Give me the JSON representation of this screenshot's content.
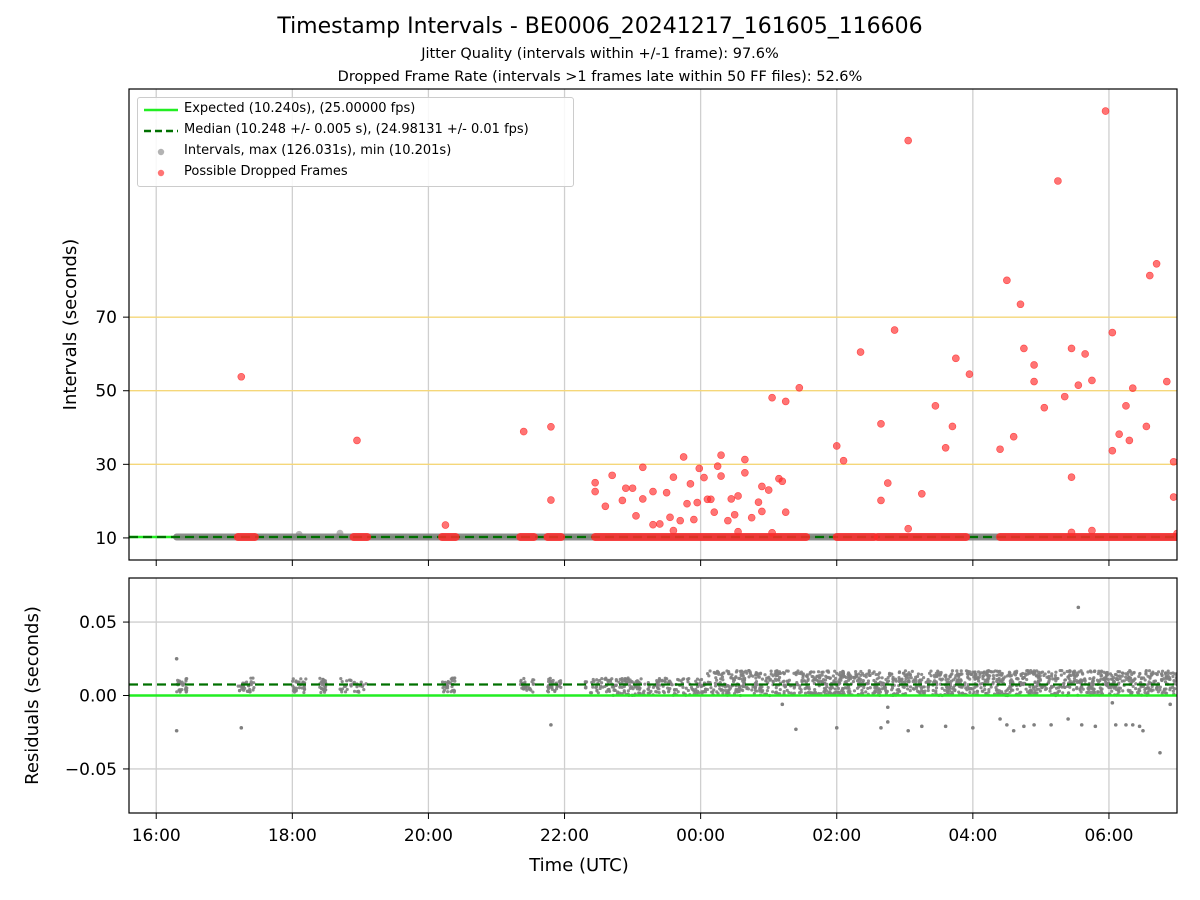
{
  "figure": {
    "title": "Timestamp Intervals - BE0006_20241217_161605_116606",
    "subtitle_1": "Jitter Quality (intervals within +/-1 frame): 97.6%",
    "subtitle_2": "Dropped Frame Rate (intervals >1 frames late within 50 FF files): 52.6%"
  },
  "colors": {
    "expected": "#22ee22",
    "median": "#007000",
    "intervals": "#808080",
    "dropped": "#ff2a2a",
    "threshold": "#f5d77a",
    "grid": "#cfcfcf"
  },
  "chart_data": [
    {
      "type": "scatter",
      "panel": "top",
      "ylabel": "Intervals (seconds)",
      "xlim_hours": [
        15.6,
        31.0
      ],
      "ylim": [
        4,
        132
      ],
      "yticks": [
        10,
        30,
        50,
        70
      ],
      "threshold_lines": [
        30,
        50,
        70
      ],
      "grid": "vertical",
      "legend_placement": "top-left",
      "legend": [
        {
          "key": "expected",
          "label": "Expected (10.240s), (25.00000 fps)",
          "style": "solid-line"
        },
        {
          "key": "median",
          "label": "Median (10.248 +/- 0.005 s), (24.98131 +/- 0.01 fps)",
          "style": "dashed-line"
        },
        {
          "key": "intervals",
          "label": "Intervals, max (126.031s), min (10.201s)",
          "style": "marker"
        },
        {
          "key": "dropped",
          "label": "Possible Dropped Frames",
          "style": "marker"
        }
      ],
      "expected_value": 10.24,
      "median_value": 10.248,
      "intervals_baseline": {
        "x_range_hours": [
          16.3,
          31.0
        ],
        "y": 10.25
      },
      "intervals_points": [
        [
          18.1,
          11.0
        ],
        [
          18.7,
          11.3
        ]
      ],
      "dropped_baseline_segments": [
        [
          17.2,
          17.45
        ],
        [
          18.9,
          19.1
        ],
        [
          20.2,
          20.4
        ],
        [
          21.35,
          21.55
        ],
        [
          21.75,
          21.95
        ],
        [
          22.45,
          25.55
        ],
        [
          26.0,
          26.55
        ],
        [
          26.6,
          27.9
        ],
        [
          28.4,
          31.0
        ]
      ],
      "dropped_points": [
        [
          17.25,
          53.8
        ],
        [
          18.95,
          36.5
        ],
        [
          20.25,
          13.5
        ],
        [
          21.4,
          38.9
        ],
        [
          21.8,
          40.2
        ],
        [
          21.8,
          20.3
        ],
        [
          22.45,
          25.0
        ],
        [
          22.45,
          22.6
        ],
        [
          22.6,
          18.6
        ],
        [
          22.7,
          27.0
        ],
        [
          22.85,
          20.2
        ],
        [
          22.9,
          23.5
        ],
        [
          23.0,
          23.5
        ],
        [
          23.05,
          16.0
        ],
        [
          23.15,
          29.2
        ],
        [
          23.15,
          20.6
        ],
        [
          23.3,
          22.6
        ],
        [
          23.3,
          13.6
        ],
        [
          23.4,
          13.8
        ],
        [
          23.5,
          22.3
        ],
        [
          23.55,
          15.6
        ],
        [
          23.6,
          26.5
        ],
        [
          23.6,
          12.0
        ],
        [
          23.7,
          14.7
        ],
        [
          23.75,
          32.0
        ],
        [
          23.8,
          19.3
        ],
        [
          23.85,
          24.7
        ],
        [
          23.9,
          15.0
        ],
        [
          23.95,
          19.6
        ],
        [
          23.98,
          28.9
        ],
        [
          24.05,
          26.4
        ],
        [
          24.1,
          20.5
        ],
        [
          24.15,
          20.5
        ],
        [
          24.2,
          17.0
        ],
        [
          24.25,
          29.5
        ],
        [
          24.3,
          32.5
        ],
        [
          24.3,
          26.8
        ],
        [
          24.4,
          14.7
        ],
        [
          24.45,
          20.6
        ],
        [
          24.5,
          16.3
        ],
        [
          24.55,
          21.4
        ],
        [
          24.55,
          11.7
        ],
        [
          24.65,
          27.7
        ],
        [
          24.65,
          31.3
        ],
        [
          24.75,
          15.5
        ],
        [
          24.85,
          19.7
        ],
        [
          24.9,
          24.0
        ],
        [
          24.9,
          17.2
        ],
        [
          25.0,
          23.0
        ],
        [
          25.05,
          11.4
        ],
        [
          25.15,
          26.1
        ],
        [
          25.2,
          25.4
        ],
        [
          25.25,
          17.0
        ],
        [
          25.05,
          48.1
        ],
        [
          25.25,
          47.1
        ],
        [
          25.45,
          50.8
        ],
        [
          26.0,
          35.0
        ],
        [
          26.1,
          31.0
        ],
        [
          26.35,
          60.5
        ],
        [
          26.65,
          41.0
        ],
        [
          26.65,
          20.2
        ],
        [
          26.75,
          24.9
        ],
        [
          26.85,
          66.5
        ],
        [
          27.05,
          12.5
        ],
        [
          27.05,
          118.0
        ],
        [
          27.25,
          22.0
        ],
        [
          27.45,
          45.9
        ],
        [
          27.6,
          34.5
        ],
        [
          27.7,
          40.3
        ],
        [
          27.75,
          58.8
        ],
        [
          27.95,
          54.5
        ],
        [
          28.4,
          34.1
        ],
        [
          28.5,
          80.0
        ],
        [
          28.6,
          37.5
        ],
        [
          28.7,
          73.5
        ],
        [
          28.75,
          61.5
        ],
        [
          28.9,
          57.0
        ],
        [
          28.9,
          52.5
        ],
        [
          29.05,
          45.4
        ],
        [
          29.25,
          107.0
        ],
        [
          29.35,
          48.4
        ],
        [
          29.45,
          61.5
        ],
        [
          29.45,
          26.5
        ],
        [
          29.45,
          11.5
        ],
        [
          29.55,
          51.5
        ],
        [
          29.65,
          60.0
        ],
        [
          29.75,
          52.8
        ],
        [
          29.75,
          12.0
        ],
        [
          29.95,
          126.0
        ],
        [
          30.05,
          33.7
        ],
        [
          30.05,
          65.8
        ],
        [
          30.15,
          38.2
        ],
        [
          30.25,
          45.9
        ],
        [
          30.3,
          36.5
        ],
        [
          30.35,
          50.7
        ],
        [
          30.55,
          40.3
        ],
        [
          30.6,
          81.3
        ],
        [
          30.7,
          84.5
        ],
        [
          30.85,
          52.5
        ],
        [
          30.95,
          30.7
        ],
        [
          30.95,
          21.1
        ],
        [
          31.0,
          11.2
        ]
      ]
    },
    {
      "type": "scatter",
      "panel": "bottom",
      "ylabel": "Residuals (seconds)",
      "xlabel": "Time (UTC)",
      "xlim_hours": [
        15.6,
        31.0
      ],
      "ylim": [
        -0.08,
        0.08
      ],
      "yticks": [
        0.05,
        0.0,
        -0.05
      ],
      "ytick_labels": [
        "0.05",
        "0.00",
        "−0.05"
      ],
      "xticks_hours": [
        16,
        18,
        20,
        22,
        24,
        26,
        28,
        30
      ],
      "xtick_labels": [
        "16:00",
        "18:00",
        "20:00",
        "22:00",
        "00:00",
        "02:00",
        "04:00",
        "06:00"
      ],
      "grid": "both",
      "expected_value": 0.0,
      "median_value": 0.0075,
      "cluster_segments_early": [
        [
          16.3,
          16.45
        ],
        [
          17.2,
          17.45
        ],
        [
          18.0,
          18.2
        ],
        [
          18.4,
          18.5
        ],
        [
          18.7,
          19.1
        ],
        [
          20.2,
          20.4
        ],
        [
          21.35,
          21.55
        ],
        [
          21.75,
          21.95
        ]
      ],
      "band_light": {
        "x_range_hours": [
          22.3,
          24.1
        ],
        "y_range": [
          0.0,
          0.012
        ]
      },
      "band_dense": {
        "x_range_hours": [
          24.1,
          31.0
        ],
        "y_range": [
          0.0,
          0.017
        ]
      },
      "outliers": [
        [
          16.3,
          0.025
        ],
        [
          16.3,
          -0.024
        ],
        [
          17.25,
          -0.022
        ],
        [
          21.8,
          0.0095
        ],
        [
          21.8,
          -0.02
        ],
        [
          25.2,
          -0.006
        ],
        [
          25.4,
          -0.023
        ],
        [
          26.0,
          -0.022
        ],
        [
          26.65,
          -0.022
        ],
        [
          26.75,
          -0.018
        ],
        [
          26.75,
          -0.008
        ],
        [
          27.05,
          -0.024
        ],
        [
          27.25,
          -0.021
        ],
        [
          27.6,
          -0.021
        ],
        [
          28.0,
          -0.022
        ],
        [
          28.4,
          -0.016
        ],
        [
          28.5,
          -0.02
        ],
        [
          28.6,
          -0.024
        ],
        [
          28.75,
          -0.021
        ],
        [
          28.9,
          -0.02
        ],
        [
          29.15,
          -0.02
        ],
        [
          29.4,
          -0.016
        ],
        [
          29.55,
          0.06
        ],
        [
          29.6,
          -0.02
        ],
        [
          29.8,
          -0.021
        ],
        [
          30.05,
          -0.005
        ],
        [
          30.1,
          -0.02
        ],
        [
          30.25,
          -0.02
        ],
        [
          30.35,
          -0.02
        ],
        [
          30.45,
          -0.021
        ],
        [
          30.5,
          -0.024
        ],
        [
          30.75,
          -0.039
        ],
        [
          30.9,
          -0.006
        ]
      ]
    }
  ]
}
